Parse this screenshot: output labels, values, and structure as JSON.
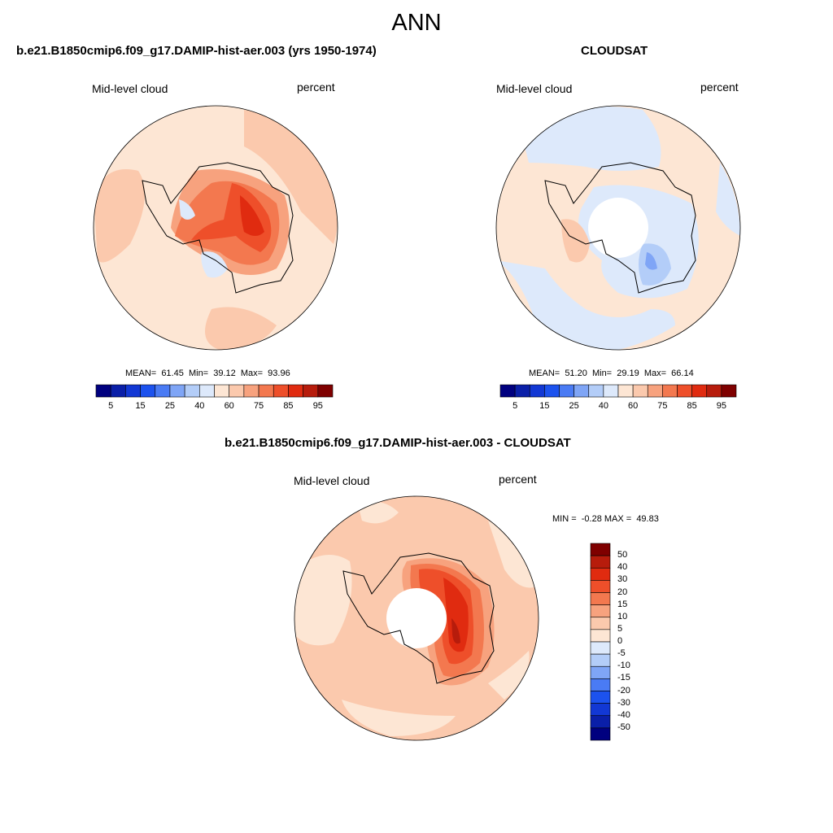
{
  "figure": {
    "title": "ANN"
  },
  "panels": [
    {
      "title": "b.e21.B1850cmip6.f09_g17.DAMIP-hist-aer.003 (yrs 1950-1974)",
      "left_label": "Mid-level cloud",
      "right_label": "percent",
      "stats": "MEAN=  61.45  Min=  39.12  Max=  93.96"
    },
    {
      "title": "CLOUDSAT",
      "left_label": "Mid-level cloud",
      "right_label": "percent",
      "stats": "MEAN=  51.20  Min=  29.19  Max=  66.14"
    },
    {
      "title": "b.e21.B1850cmip6.f09_g17.DAMIP-hist-aer.003 - CLOUDSAT",
      "left_label": "Mid-level cloud",
      "right_label": "percent",
      "stats": "MIN =  -0.28 MAX =  49.83"
    }
  ],
  "colorbars": {
    "absolute": {
      "colors": [
        "#00007f",
        "#0a1fa8",
        "#1238d4",
        "#1c52ee",
        "#4a7bf4",
        "#7fa5f6",
        "#b3cdf8",
        "#dde9fb",
        "#fde6d4",
        "#fbc9ad",
        "#f7a27e",
        "#f3784f",
        "#ee4f2a",
        "#e02b10",
        "#b71c0c",
        "#7f0000"
      ],
      "labels": [
        "5",
        "15",
        "25",
        "40",
        "60",
        "75",
        "85",
        "95"
      ]
    },
    "difference": {
      "colors": [
        "#00007f",
        "#0a1fa8",
        "#1238d4",
        "#1c52ee",
        "#4a7bf4",
        "#7fa5f6",
        "#b3cdf8",
        "#dde9fb",
        "#fde6d4",
        "#fbc9ad",
        "#f7a27e",
        "#f3784f",
        "#ee4f2a",
        "#e02b10",
        "#b71c0c",
        "#7f0000"
      ],
      "labels": [
        "50",
        "40",
        "30",
        "20",
        "15",
        "10",
        "5",
        "0",
        "-5",
        "-10",
        "-15",
        "-20",
        "-30",
        "-40",
        "-50"
      ]
    }
  }
}
